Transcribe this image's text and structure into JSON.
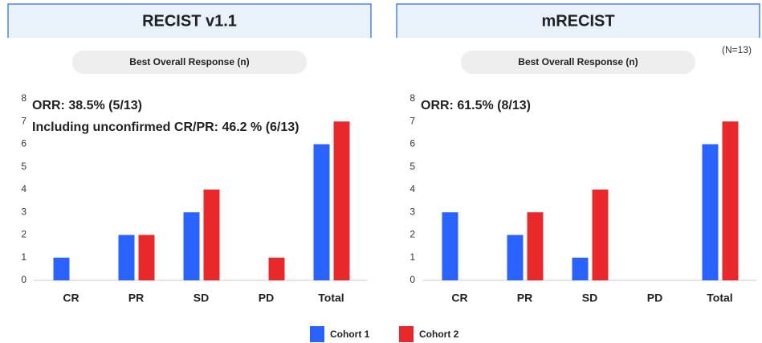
{
  "chart_data": [
    {
      "type": "bar",
      "title": "RECIST v1.1",
      "subtitle": "Best Overall Response (n)",
      "annotations": [
        "ORR: 38.5% (5/13)",
        "Including unconfirmed CR/PR: 46.2 % (6/13)"
      ],
      "categories": [
        "CR",
        "PR",
        "SD",
        "PD",
        "Total"
      ],
      "series": [
        {
          "name": "Cohort 1",
          "color": "#2962ff",
          "values": [
            1,
            2,
            3,
            0,
            6
          ]
        },
        {
          "name": "Cohort 2",
          "color": "#e8282b",
          "values": [
            0,
            2,
            4,
            1,
            7
          ]
        }
      ],
      "ylim": [
        0,
        8
      ],
      "yticks": [
        0,
        1,
        2,
        3,
        4,
        5,
        6,
        7,
        8
      ],
      "legend": "bottom"
    },
    {
      "type": "bar",
      "title": "mRECIST",
      "subtitle": "Best Overall Response (n)",
      "note": "(N=13)",
      "annotations": [
        "ORR: 61.5% (8/13)"
      ],
      "categories": [
        "CR",
        "PR",
        "SD",
        "PD",
        "Total"
      ],
      "series": [
        {
          "name": "Cohort 1",
          "color": "#2962ff",
          "values": [
            3,
            2,
            1,
            0,
            6
          ]
        },
        {
          "name": "Cohort 2",
          "color": "#e8282b",
          "values": [
            0,
            3,
            4,
            0,
            7
          ]
        }
      ],
      "ylim": [
        0,
        8
      ],
      "yticks": [
        0,
        1,
        2,
        3,
        4,
        5,
        6,
        7,
        8
      ]
    }
  ]
}
